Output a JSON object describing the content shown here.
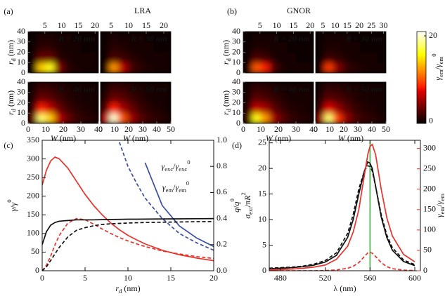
{
  "chart_data": [
    {
      "type": "heatmap",
      "panel_label": "(a)",
      "title": "LRA",
      "title_color": "#e8322b",
      "x_label": [
        {
          "i": "W"
        },
        " (nm)"
      ],
      "y_label": [
        {
          "i": "r"
        },
        {
          "sub": "d"
        },
        " (nm)"
      ],
      "colormap": "hot",
      "zlim": [
        -0.5,
        21
      ],
      "subplots": [
        {
          "annotation": "R = 20 nm",
          "xlim": [
            0,
            21
          ],
          "ylim": [
            0,
            40
          ],
          "xticks": [
            5,
            10,
            15,
            20
          ],
          "xtick_side": "top",
          "yticks": [
            0,
            10,
            20,
            30,
            40
          ],
          "z": [
            [
              0,
              14,
              16,
              4,
              1,
              0.5,
              0.3,
              0.2
            ],
            [
              0,
              3,
              3,
              1,
              0.5,
              0.2,
              0.1,
              0.1
            ],
            [
              0,
              1,
              1,
              0.5,
              0.2,
              0.1,
              0,
              0
            ],
            [
              0,
              0.5,
              0.5,
              0.2,
              0.1,
              0,
              0,
              0
            ]
          ]
        },
        {
          "annotation": "R = 30 nm",
          "xlim": [
            2,
            22
          ],
          "ylim": [
            0,
            40
          ],
          "xticks": [
            5,
            10,
            15,
            20
          ],
          "xtick_side": "top",
          "z": [
            [
              0,
              12,
              6,
              2,
              1,
              0.5,
              0.3,
              0.2
            ],
            [
              0,
              2,
              1.5,
              0.8,
              0.4,
              0.2,
              0.1,
              0.1
            ],
            [
              0,
              0.8,
              0.6,
              0.3,
              0.2,
              0.1,
              0,
              0
            ],
            [
              0,
              0.4,
              0.3,
              0.2,
              0.1,
              0,
              0,
              0
            ]
          ]
        },
        {
          "annotation": "R = 40 nm",
          "xlim": [
            0,
            40
          ],
          "ylim": [
            0,
            40
          ],
          "xticks": [
            0,
            10,
            20,
            30,
            40
          ],
          "xtick_side": "bottom",
          "yticks": [
            0,
            10,
            20,
            30,
            40
          ],
          "z": [
            [
              3,
              18,
              14,
              6,
              3,
              1.5,
              1,
              0.6
            ],
            [
              1,
              8,
              6,
              3,
              1.5,
              0.8,
              0.5,
              0.3
            ],
            [
              0.5,
              3,
              2.5,
              1.5,
              0.8,
              0.4,
              0.2,
              0.1
            ],
            [
              0.2,
              1.5,
              1.2,
              0.8,
              0.4,
              0.2,
              0.1,
              0.1
            ]
          ]
        },
        {
          "annotation": "R = 50 nm",
          "xlim": [
            0,
            50
          ],
          "ylim": [
            0,
            40
          ],
          "xticks": [
            0,
            10,
            20,
            30,
            40,
            50
          ],
          "xtick_side": "bottom",
          "z": [
            [
              6,
              20,
              10,
              5,
              2.5,
              1.5,
              1,
              0.6
            ],
            [
              2,
              8,
              5,
              3,
              1.5,
              0.8,
              0.5,
              0.3
            ],
            [
              0.8,
              3,
              2.5,
              1.5,
              0.8,
              0.5,
              0.3,
              0.2
            ],
            [
              0.3,
              1.5,
              1.2,
              0.8,
              0.5,
              0.3,
              0.2,
              0.1
            ]
          ]
        }
      ]
    },
    {
      "type": "heatmap",
      "panel_label": "(b)",
      "title": "GNOR",
      "title_color": "#34349e",
      "x_label": [
        {
          "i": "W"
        },
        " (nm)"
      ],
      "y_label": [
        {
          "i": "r"
        },
        {
          "sub": "d"
        },
        " (nm)"
      ],
      "colormap": "hot",
      "zlim": [
        -0.5,
        21
      ],
      "colorbar_ticks": [
        0,
        20
      ],
      "colorbar_label": [
        {
          "i": "γ"
        },
        {
          "sub": "em"
        },
        "/",
        {
          "i": "γ"
        },
        {
          "sub": "em"
        },
        {
          "sup": "0"
        }
      ],
      "subplots": [
        {
          "annotation": "R = 20 nm",
          "xlim": [
            0,
            21
          ],
          "ylim": [
            0,
            40
          ],
          "xticks": [
            5,
            10,
            15,
            20
          ],
          "xtick_side": "top",
          "yticks": [
            0,
            10,
            20,
            30,
            40
          ],
          "z": [
            [
              0,
              10,
              8,
              2,
              0.5,
              0.3,
              0.2,
              0.1
            ],
            [
              0,
              2,
              1.5,
              0.5,
              0.2,
              0.1,
              0,
              0
            ],
            [
              0,
              0.5,
              0.5,
              0.2,
              0.1,
              0,
              0,
              0
            ],
            [
              0,
              0.2,
              0.2,
              0.1,
              0,
              0,
              0,
              0
            ]
          ]
        },
        {
          "annotation": "R = 30 nm",
          "xlim": [
            2,
            31
          ],
          "ylim": [
            0,
            40
          ],
          "xticks": [
            5,
            10,
            15,
            20,
            25,
            30
          ],
          "xtick_side": "top",
          "z": [
            [
              0,
              9,
              4,
              1.5,
              0.8,
              0.4,
              0.2,
              0.1
            ],
            [
              0,
              1.5,
              1,
              0.5,
              0.3,
              0.1,
              0.1,
              0
            ],
            [
              0,
              0.5,
              0.4,
              0.2,
              0.1,
              0,
              0,
              0
            ],
            [
              0,
              0.2,
              0.2,
              0.1,
              0,
              0,
              0,
              0
            ]
          ]
        },
        {
          "annotation": "R = 40 nm",
          "xlim": [
            0,
            40
          ],
          "ylim": [
            0,
            40
          ],
          "xticks": [
            0,
            10,
            20,
            30,
            40
          ],
          "xtick_side": "bottom",
          "yticks": [
            0,
            10,
            20,
            30,
            40
          ],
          "z": [
            [
              2,
              16,
              12,
              5,
              2.5,
              1.2,
              0.8,
              0.5
            ],
            [
              0.8,
              6,
              5,
              2.5,
              1.2,
              0.6,
              0.4,
              0.2
            ],
            [
              0.4,
              2.5,
              2,
              1.2,
              0.6,
              0.3,
              0.2,
              0.1
            ],
            [
              0.2,
              1.2,
              1,
              0.6,
              0.3,
              0.2,
              0.1,
              0.1
            ]
          ]
        },
        {
          "annotation": "R = 50 nm",
          "xlim": [
            0,
            50
          ],
          "ylim": [
            0,
            40
          ],
          "xticks": [
            0,
            10,
            20,
            30,
            40,
            50
          ],
          "xtick_side": "bottom",
          "z": [
            [
              5,
              18,
              9,
              4.5,
              2.2,
              1.3,
              0.9,
              0.5
            ],
            [
              1.5,
              7,
              4.5,
              2.5,
              1.3,
              0.7,
              0.4,
              0.3
            ],
            [
              0.6,
              2.5,
              2,
              1.3,
              0.7,
              0.4,
              0.3,
              0.2
            ],
            [
              0.3,
              1.2,
              1,
              0.7,
              0.4,
              0.3,
              0.2,
              0.1
            ]
          ]
        }
      ]
    },
    {
      "type": "line",
      "panel_label": "(c)",
      "x_label": [
        {
          "i": "r"
        },
        {
          "sub": "d"
        },
        " (nm)"
      ],
      "y_label": [
        {
          "i": "γ"
        },
        "/",
        {
          "i": "γ"
        },
        {
          "sup": "0"
        }
      ],
      "y2_label": [
        {
          "i": "q"
        },
        "/",
        {
          "i": "q"
        },
        {
          "sup": "0"
        }
      ],
      "xlim": [
        0,
        20
      ],
      "xticks": [
        0,
        5,
        10,
        15,
        20
      ],
      "ylim": [
        0,
        350
      ],
      "yticks": [
        0,
        50,
        100,
        150,
        200,
        250,
        300,
        350
      ],
      "y2lim": [
        0,
        1
      ],
      "y2ticks": [
        {
          "value": 0,
          "label": "0.0"
        },
        0.2,
        0.4,
        0.6,
        0.8,
        {
          "value": 1,
          "label": "1.0"
        }
      ],
      "x": [
        0,
        0.5,
        1,
        1.5,
        2,
        3,
        4,
        5,
        6,
        7,
        8,
        9,
        10,
        11,
        12,
        14,
        16,
        18,
        20
      ],
      "series": [
        {
          "color": "#e8322b",
          "dashed": false,
          "values": [
            230,
            270,
            295,
            305,
            300,
            275,
            240,
            205,
            175,
            150,
            128,
            110,
            95,
            83,
            72,
            55,
            43,
            34,
            27
          ]
        },
        {
          "color": "#e8322b",
          "dashed": true,
          "values": [
            0,
            15,
            40,
            70,
            95,
            128,
            140,
            137,
            125,
            112,
            100,
            89,
            80,
            72,
            65,
            53,
            45,
            38,
            33
          ]
        },
        {
          "color": "#3a4ea6",
          "dashed": false,
          "values": [
            null,
            null,
            null,
            null,
            null,
            null,
            null,
            null,
            null,
            null,
            null,
            null,
            null,
            null,
            290,
            175,
            120,
            88,
            65
          ]
        },
        {
          "color": "#3a4ea6",
          "dashed": true,
          "values": [
            null,
            null,
            null,
            null,
            null,
            null,
            null,
            null,
            null,
            null,
            null,
            345,
            280,
            235,
            195,
            140,
            100,
            75,
            55
          ]
        },
        {
          "color": "#111111",
          "dashed": false,
          "axis": "y2",
          "values": [
            0.2,
            0.3,
            0.35,
            0.37,
            0.38,
            0.385,
            0.39,
            0.39,
            0.39,
            0.392,
            0.393,
            0.394,
            0.395,
            0.395,
            0.396,
            0.397,
            0.398,
            0.399,
            0.4
          ]
        },
        {
          "color": "#111111",
          "dashed": true,
          "axis": "y2",
          "values": [
            0,
            0.03,
            0.08,
            0.13,
            0.18,
            0.26,
            0.31,
            0.33,
            0.345,
            0.355,
            0.36,
            0.363,
            0.366,
            0.368,
            0.37,
            0.372,
            0.374,
            0.376,
            0.377
          ]
        }
      ],
      "annotations": [
        {
          "text": [
            {
              "i": "γ"
            },
            {
              "sub": "exc"
            },
            "/",
            {
              "i": "γ"
            },
            {
              "sub": "exc"
            },
            {
              "sup": "0"
            }
          ],
          "color": "#3a4ea6"
        },
        {
          "text": [
            {
              "i": "γ"
            },
            {
              "sub": "em"
            },
            "/",
            {
              "i": "γ"
            },
            {
              "sub": "em"
            },
            {
              "sup": "0"
            }
          ],
          "color": "#e8322b"
        }
      ]
    },
    {
      "type": "line",
      "panel_label": "(d)",
      "x_label": "λ (nm)",
      "y_label": [
        {
          "i": "σ"
        },
        {
          "sub": "ext"
        },
        "/π",
        {
          "i": "R"
        },
        {
          "sup": "2"
        }
      ],
      "y2_label": [
        {
          "i": "γ"
        },
        {
          "sub": "em"
        },
        "/",
        {
          "i": "γ"
        },
        {
          "sub": "em"
        }
      ],
      "y2_color": "#e8322b",
      "xlim": [
        470,
        605
      ],
      "xticks": [
        480,
        520,
        560,
        600
      ],
      "ylim": [
        0,
        25.5
      ],
      "yticks": [
        0,
        5,
        10,
        15,
        20,
        25
      ],
      "y2lim": [
        0,
        320
      ],
      "y2ticks": [
        0,
        50,
        100,
        150,
        200,
        250,
        300
      ],
      "x": [
        470,
        480,
        490,
        500,
        510,
        520,
        530,
        540,
        545,
        550,
        555,
        558,
        560,
        562,
        565,
        570,
        575,
        580,
        590,
        600
      ],
      "series": [
        {
          "color": "#111111",
          "dashed": false,
          "values": [
            0.4,
            0.5,
            0.6,
            0.8,
            1.1,
            1.7,
            3,
            6.5,
            10,
            15,
            19.5,
            21.3,
            21,
            20,
            16.5,
            10.5,
            6.5,
            4,
            1.8,
            1
          ]
        },
        {
          "color": "#111111",
          "dashed": true,
          "values": [
            0.5,
            0.6,
            0.7,
            0.9,
            1.3,
            2,
            3.5,
            7.3,
            11,
            16,
            19.5,
            20.5,
            20.4,
            19.5,
            16.5,
            11,
            7,
            4.5,
            2.1,
            1.2
          ]
        },
        {
          "color": "#e8322b",
          "dashed": false,
          "axis": "y2",
          "values": [
            2,
            3,
            4,
            6,
            9,
            14,
            28,
            60,
            95,
            150,
            235,
            285,
            305,
            310,
            285,
            200,
            130,
            85,
            40,
            22
          ]
        },
        {
          "color": "#e8322b",
          "dashed": true,
          "axis": "y2",
          "values": [
            0,
            0,
            0,
            0,
            0,
            0.5,
            2,
            6,
            11,
            20,
            35,
            44,
            45,
            43,
            35,
            20,
            10,
            5,
            1.5,
            0.5
          ]
        }
      ],
      "vlines": [
        {
          "x": 560,
          "color": "#2db52d"
        }
      ]
    }
  ]
}
